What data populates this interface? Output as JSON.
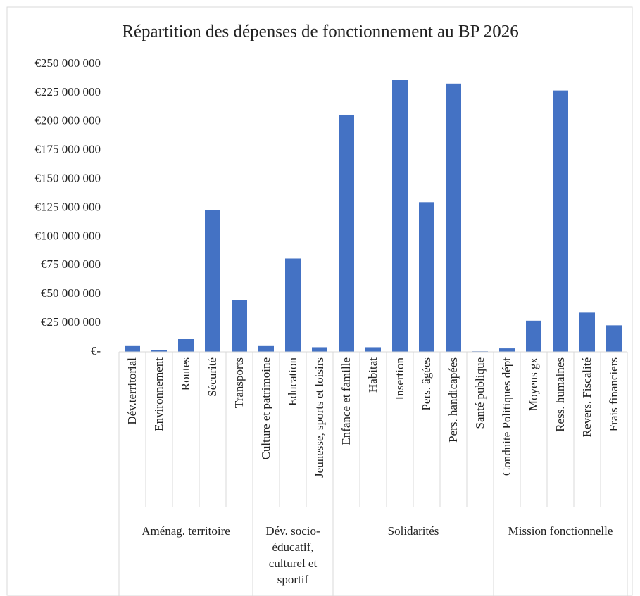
{
  "chart_data": {
    "type": "bar",
    "title": "Répartition des dépenses de fonctionnement au BP 2026",
    "color": "#4472c4",
    "grid": false,
    "ylim": [
      0,
      250000000
    ],
    "yticks": [
      {
        "value": 0,
        "label": "€-"
      },
      {
        "value": 25000000,
        "label": "€25 000 000"
      },
      {
        "value": 50000000,
        "label": "€50 000 000"
      },
      {
        "value": 75000000,
        "label": "€75 000 000"
      },
      {
        "value": 100000000,
        "label": "€100 000 000"
      },
      {
        "value": 125000000,
        "label": "€125 000 000"
      },
      {
        "value": 150000000,
        "label": "€150 000 000"
      },
      {
        "value": 175000000,
        "label": "€175 000 000"
      },
      {
        "value": 200000000,
        "label": "€200 000 000"
      },
      {
        "value": 225000000,
        "label": "€225 000 000"
      },
      {
        "value": 250000000,
        "label": "€250 000 000"
      }
    ],
    "groups": [
      {
        "label": "Aménag. territoire",
        "categories": [
          "Dév.territorial",
          "Environnement",
          "Routes",
          "Sécurité",
          "Transports"
        ],
        "values": [
          5000000,
          1500000,
          11000000,
          123000000,
          45000000
        ]
      },
      {
        "label": "Dév. socio-éducatif, culturel et sportif",
        "categories": [
          "Culture et patrimoine",
          "Education",
          "Jeunesse, sports et loisirs"
        ],
        "values": [
          5000000,
          81000000,
          4000000
        ]
      },
      {
        "label": "Solidarités",
        "categories": [
          "Enfance et famille",
          "Habitat",
          "Insertion",
          "Pers. âgées",
          "Pers. handicapées",
          "Santé publique"
        ],
        "values": [
          206000000,
          4000000,
          236000000,
          130000000,
          233000000,
          500000
        ]
      },
      {
        "label": "Mission fonctionnelle",
        "categories": [
          "Conduite Politiques dépt",
          "Moyens gx",
          "Ress. humaines",
          "Revers. Fiscalité",
          "Frais financiers"
        ],
        "values": [
          3000000,
          27000000,
          227000000,
          34000000,
          23000000
        ]
      }
    ]
  }
}
